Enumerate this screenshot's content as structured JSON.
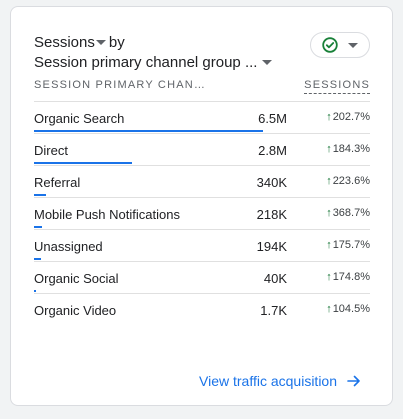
{
  "header": {
    "metric_label": "Sessions",
    "by_label": "by",
    "dimension_label": "Session primary channel group ..."
  },
  "status_icon": "check-circle-icon",
  "table": {
    "col_dimension": "SESSION PRIMARY CHAN…",
    "col_metric": "SESSIONS",
    "rows": [
      {
        "name": "Organic Search",
        "value": "6.5M",
        "change": "202.7%",
        "share": 1.0
      },
      {
        "name": "Direct",
        "value": "2.8M",
        "change": "184.3%",
        "share": 0.43
      },
      {
        "name": "Referral",
        "value": "340K",
        "change": "223.6%",
        "share": 0.052
      },
      {
        "name": "Mobile Push Notifications",
        "value": "218K",
        "change": "368.7%",
        "share": 0.034
      },
      {
        "name": "Unassigned",
        "value": "194K",
        "change": "175.7%",
        "share": 0.03
      },
      {
        "name": "Organic Social",
        "value": "40K",
        "change": "174.8%",
        "share": 0.006
      },
      {
        "name": "Organic Video",
        "value": "1.7K",
        "change": "104.5%",
        "share": 0.0
      }
    ]
  },
  "footer_link": "View traffic acquisition",
  "colors": {
    "accent": "#1a73e8",
    "positive": "#137333",
    "check": "#188038"
  }
}
